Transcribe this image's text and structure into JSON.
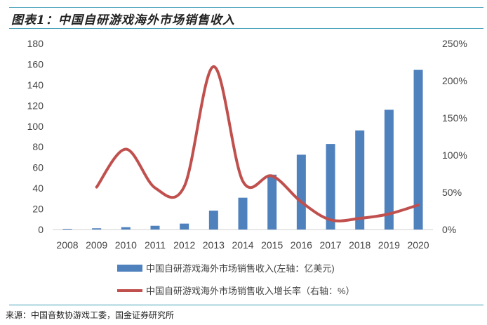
{
  "title": "图表1：中国自研游戏海外市场销售收入",
  "source": "来源：中国音数协游戏工委，国金证券研究所",
  "chart_data": {
    "type": "bar+line",
    "categories": [
      "2008",
      "2009",
      "2010",
      "2011",
      "2012",
      "2013",
      "2014",
      "2015",
      "2016",
      "2017",
      "2018",
      "2019",
      "2020"
    ],
    "series": [
      {
        "name": "中国自研游戏海外市场销售收入(左轴：亿美元)",
        "type": "bar",
        "axis": "left",
        "color": "#4f81bd",
        "values": [
          0.7,
          1.2,
          2.3,
          3.6,
          5.7,
          18.3,
          30.8,
          53.1,
          72.4,
          82.8,
          95.9,
          115.9,
          154.5
        ]
      },
      {
        "name": "中国自研游戏海外市场销售收入增长率（右轴：%）",
        "type": "line",
        "axis": "right",
        "color": "#c0504d",
        "values": [
          null,
          57,
          108,
          56,
          58,
          219,
          65,
          72,
          37,
          13,
          15,
          21,
          33
        ]
      }
    ],
    "left_axis": {
      "min": 0,
      "max": 180,
      "ticks": [
        "0",
        "20",
        "40",
        "60",
        "80",
        "100",
        "120",
        "140",
        "160",
        "180"
      ]
    },
    "right_axis": {
      "min": 0,
      "max": 250,
      "ticks": [
        "0%",
        "50%",
        "100%",
        "150%",
        "200%",
        "250%"
      ]
    },
    "legend": "bottom",
    "grid": false
  }
}
